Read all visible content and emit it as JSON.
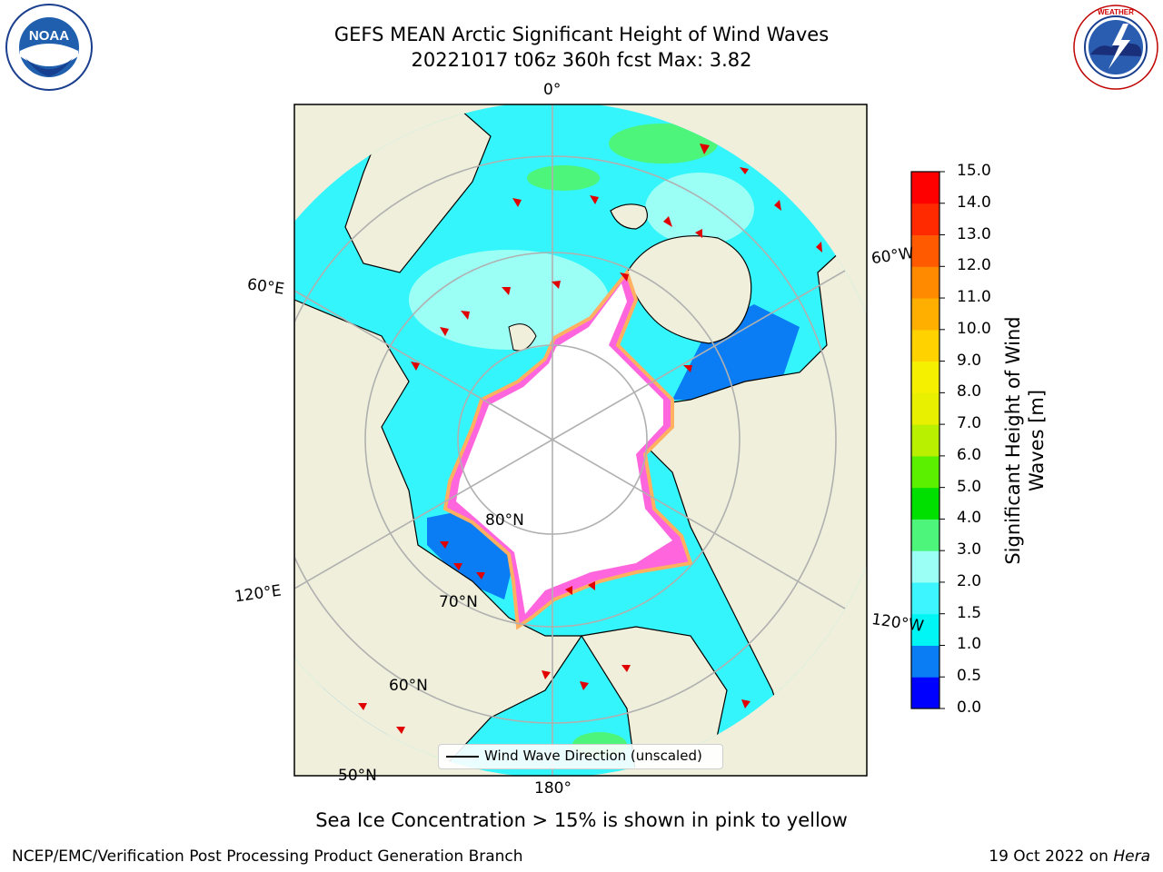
{
  "header": {
    "title_line1": "GEFS MEAN Arctic Significant Height of Wind Waves",
    "title_line2": "20221017 t06z 360h fcst   Max: 3.82"
  },
  "logos": {
    "left": "NOAA",
    "right": "NATIONAL WEATHER SERVICE"
  },
  "map": {
    "projection": "north-polar-stereographic",
    "colors": {
      "land": "#efefdb",
      "ice_inner": "#ffffff",
      "grid": "#b0b0b0",
      "arrow": "#e00000"
    },
    "longitude_labels": [
      "0°",
      "60°W",
      "60°E",
      "120°E",
      "120°W",
      "180°"
    ],
    "latitude_labels": [
      "80°N",
      "70°N",
      "60°N",
      "50°N"
    ]
  },
  "legend": {
    "label": "Wind Wave Direction (unscaled)"
  },
  "colorbar": {
    "title_line1": "Significant Height of Wind",
    "title_line2": "Waves [m]",
    "ticks": [
      "0.0",
      "0.5",
      "1.0",
      "1.5",
      "2.0",
      "3.0",
      "4.0",
      "5.0",
      "6.0",
      "7.0",
      "8.0",
      "9.0",
      "10.0",
      "11.0",
      "12.0",
      "13.0",
      "14.0",
      "15.0"
    ],
    "colors": [
      "#0000ff",
      "#0a7df5",
      "#00f5f5",
      "#3cf5ff",
      "#9cfff5",
      "#4df57a",
      "#00e000",
      "#5af000",
      "#b8f000",
      "#e8f000",
      "#f5f000",
      "#ffd200",
      "#ffaf00",
      "#ff8a00",
      "#ff5a00",
      "#ff2a00",
      "#ff0000"
    ]
  },
  "footer": {
    "note": "Sea Ice Concentration > 15% is shown in pink to yellow",
    "credit": "NCEP/EMC/Verification Post Processing Product Generation Branch",
    "date": "19 Oct 2022 on ",
    "host": "Hera"
  }
}
